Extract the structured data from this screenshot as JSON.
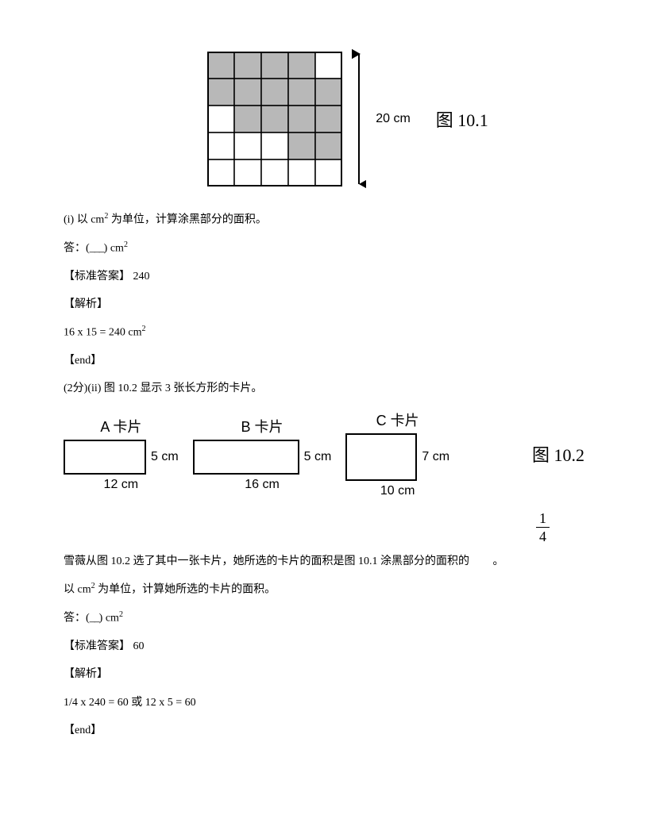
{
  "fig101": {
    "label": "图 10.1",
    "height_label": "20 cm",
    "grid": {
      "rows": 5,
      "cols": 5,
      "cell": 34,
      "shaded_color": "#b8b8b8",
      "line_color": "#000000",
      "bg_color": "#ffffff",
      "shaded_cells": [
        [
          0,
          0
        ],
        [
          0,
          1
        ],
        [
          0,
          2
        ],
        [
          0,
          3
        ],
        [
          1,
          0
        ],
        [
          1,
          1
        ],
        [
          1,
          2
        ],
        [
          1,
          3
        ],
        [
          1,
          4
        ],
        [
          2,
          1
        ],
        [
          2,
          2
        ],
        [
          2,
          3
        ],
        [
          2,
          4
        ],
        [
          3,
          3
        ],
        [
          3,
          4
        ]
      ]
    }
  },
  "q1": {
    "prompt_pre": "(i) 以 cm",
    "prompt_post": " 为单位，计算涂黑部分的面积。",
    "answer_pre": "答：(",
    "answer_blank": "___",
    "answer_post": ") cm",
    "stdans_label": "【标准答案】",
    "stdans_value": "240",
    "analysis_label": "【解析】",
    "analysis_text": "16 x 15 = 240 cm",
    "end_label": "【end】"
  },
  "q2intro": "(2分)(ii) 图 10.2 显示 3 张长方形的卡片。",
  "fig102": {
    "label": "图 10.2",
    "cards": [
      {
        "name": "A 卡片",
        "w_label": "12 cm",
        "h_label": "5 cm",
        "w": 104,
        "h": 44
      },
      {
        "name": "B 卡片",
        "w_label": "16 cm",
        "h_label": "5 cm",
        "w": 134,
        "h": 44
      },
      {
        "name": "C 卡片",
        "w_label": "10 cm",
        "h_label": "7 cm",
        "w": 90,
        "h": 60
      }
    ]
  },
  "q2": {
    "text1": "雪薇从图 10.2 选了其中一张卡片，她所选的卡片的面积是图 10.1 涂黑部分的面积的",
    "frac_top": "1",
    "frac_bot": "4",
    "text1_end": "。",
    "text2_pre": "以 cm",
    "text2_post": " 为单位，计算她所选的卡片的面积。",
    "answer_pre": "答：(",
    "answer_blank": "__",
    "answer_post": ") cm",
    "stdans_label": "【标准答案】",
    "stdans_value": "60",
    "analysis_label": "【解析】",
    "analysis_text": "1/4 x 240 = 60 或 12 x 5 = 60",
    "end_label": "【end】"
  }
}
